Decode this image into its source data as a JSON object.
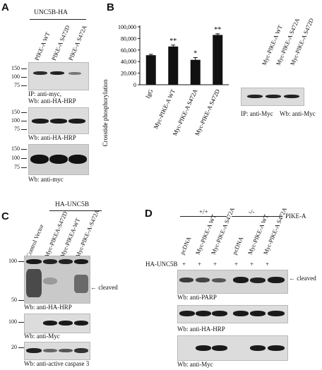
{
  "panelA": {
    "label": "A",
    "group_header": "UNC5B-HA",
    "lanes": [
      "PIKE-A WT",
      "PIKE-A S472D",
      "PIKE-A S472A"
    ],
    "blot1_markers": [
      "150",
      "100",
      "75"
    ],
    "blot1_caption_1": "IP: anti-myc,",
    "blot1_caption_2": "Wb: anti-HA-HRP",
    "blot2_markers": [
      "150",
      "100",
      "75"
    ],
    "blot2_caption": "Wb: anti-HA-HRP",
    "blot3_markers": [
      "150",
      "100",
      "75"
    ],
    "blot3_caption": "Wb: anti-myc"
  },
  "panelB": {
    "label": "B",
    "blot_lanes": [
      "Myc-PIKE-A WT",
      "Myc-PIKE-A S472A",
      "Myc-PIKE-A S472D"
    ],
    "blot_caption_1": "IP: anti-Myc",
    "blot_caption_2": "Wb: anti-Myc"
  },
  "chart_data": {
    "type": "bar",
    "ylabel": "Crosstide phosphorylation",
    "categories": [
      "IgG",
      "Myc-PIKE-A WT",
      "Myc-PIKE-A S472A",
      "Myc-PIKE-A S472D"
    ],
    "values": [
      51000,
      66000,
      43000,
      86000
    ],
    "errors": [
      1500,
      2500,
      4000,
      2000
    ],
    "significance": [
      "",
      "**",
      "*",
      "**"
    ],
    "ylim": [
      0,
      100000
    ],
    "yticks": [
      "0",
      "20,000",
      "40,000",
      "60,000",
      "80,000",
      "100,000"
    ],
    "ytick_values": [
      0,
      20000,
      40000,
      60000,
      80000,
      100000
    ],
    "bar_color": "#111111"
  },
  "panelC": {
    "label": "C",
    "group_header": "HA-UNC5B",
    "lanes": [
      "Control Vector",
      "Myc-PIKEA-S472D",
      "Myc-PIKEA-WT",
      "Myc-PIKE-A-S472A"
    ],
    "blot1_markers": [
      "100",
      "50"
    ],
    "cleaved_label": "cleaved",
    "blot1_caption": "Wb: anti-HA-HRP",
    "blot2_markers": [
      "100"
    ],
    "blot2_caption": "Wb: anti-Myc",
    "blot3_markers": [
      "20"
    ],
    "blot3_caption": "Wb: anti-active caspase 3"
  },
  "panelD": {
    "label": "D",
    "group_wt": "+/+",
    "group_ko": "-/-",
    "genotype_label": "PIKE-A",
    "lanes": [
      "pcDNA",
      "Myc-PIKE-A WT",
      "Myc-PIKE-A S472A",
      "pcDNA",
      "Myc-PIKE-A WT",
      "Myc-PIKE-A S472A"
    ],
    "row_label": "HA-UNC5B",
    "plus_signs": [
      "+",
      "+",
      "+",
      "+",
      "+",
      "+"
    ],
    "cleaved_label": "cleaved",
    "blot1_caption": "Wb: anti-PARP",
    "blot2_caption": "Wb: anti-HA-HRP",
    "blot3_caption": "Wb: anti-Myc"
  },
  "colors": {
    "band": "#1a1a1a",
    "blot_bg": "#dcdcdc"
  }
}
